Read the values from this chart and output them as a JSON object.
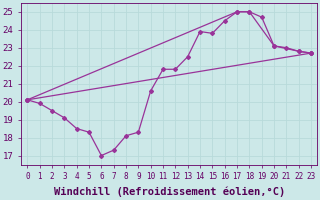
{
  "xlabel": "Windchill (Refroidissement éolien,°C)",
  "background_color": "#cce8e8",
  "grid_color": "#aad4d4",
  "line_color": "#993399",
  "xlim": [
    -0.5,
    23.5
  ],
  "ylim": [
    16.5,
    25.5
  ],
  "yticks": [
    17,
    18,
    19,
    20,
    21,
    22,
    23,
    24,
    25
  ],
  "xticks": [
    0,
    1,
    2,
    3,
    4,
    5,
    6,
    7,
    8,
    9,
    10,
    11,
    12,
    13,
    14,
    15,
    16,
    17,
    18,
    19,
    20,
    21,
    22,
    23
  ],
  "curve_x": [
    0,
    1,
    2,
    3,
    4,
    5,
    6,
    7,
    8,
    9,
    10,
    11,
    12,
    13,
    14,
    15,
    16,
    17,
    18,
    19,
    20,
    21,
    22,
    23
  ],
  "curve_y": [
    20.1,
    19.9,
    19.5,
    19.1,
    18.5,
    18.3,
    17.0,
    17.3,
    18.1,
    18.3,
    20.6,
    21.8,
    21.8,
    22.5,
    23.9,
    23.8,
    24.5,
    25.0,
    25.0,
    24.7,
    23.1,
    23.0,
    22.8,
    22.7
  ],
  "line1_x": [
    0,
    17,
    18,
    20,
    22,
    23
  ],
  "line1_y": [
    20.1,
    25.0,
    25.0,
    23.1,
    22.8,
    22.7
  ],
  "line2_x": [
    0,
    23
  ],
  "line2_y": [
    20.1,
    22.7
  ],
  "tick_fontsize": 6.5,
  "xlabel_fontsize": 7.5,
  "marker": "D",
  "markersize": 2.0,
  "linewidth": 0.9
}
